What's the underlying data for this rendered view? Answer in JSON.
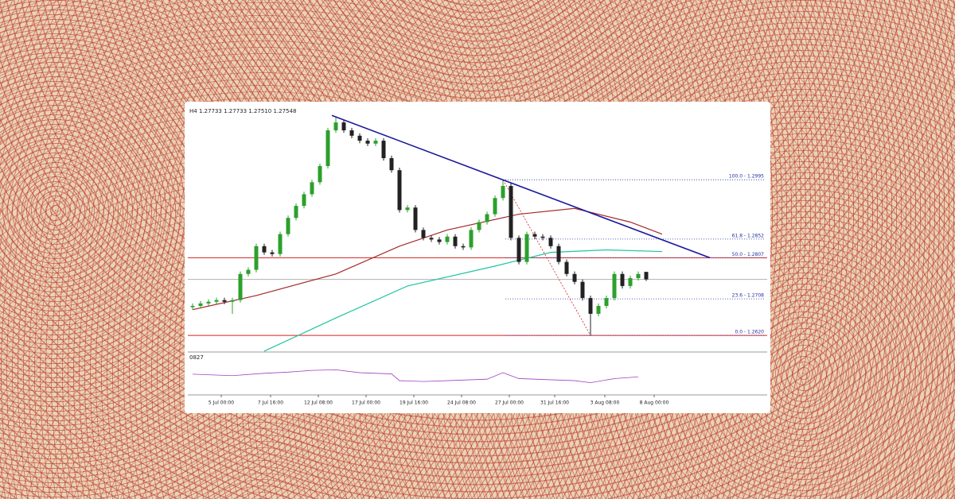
{
  "chart_data": {
    "type": "candlestick",
    "title": "H4 1.27733 1.27733 1.27510 1.27548",
    "up_color": "#2ca02c",
    "down_color": "#222222",
    "open": [
      1.2688,
      1.2691,
      1.2697,
      1.2701,
      1.2705,
      1.2701,
      1.2705,
      1.2768,
      1.2778,
      1.2835,
      1.282,
      1.2816,
      1.2864,
      1.2903,
      1.2932,
      1.296,
      1.2989,
      1.3028,
      1.3114,
      1.3133,
      1.3114,
      1.3101,
      1.3089,
      1.3082,
      1.3089,
      1.3047,
      1.3018,
      1.2922,
      1.2928,
      1.2874,
      1.2855,
      1.2851,
      1.2845,
      1.2858,
      1.2835,
      1.2832,
      1.2874,
      1.2893,
      1.2912,
      1.2951,
      1.298,
      1.2855,
      1.2797,
      1.2864,
      1.2858,
      1.2855,
      1.2835,
      1.2797,
      1.2768,
      1.2749,
      1.271,
      1.2672,
      1.2691,
      1.271,
      1.2768,
      1.2739,
      1.2758,
      1.2773
    ],
    "high": [
      1.2697,
      1.2703,
      1.2707,
      1.2711,
      1.2711,
      1.2711,
      1.2774,
      1.2784,
      1.2841,
      1.2841,
      1.2826,
      1.287,
      1.2909,
      1.2938,
      1.2966,
      1.2995,
      1.3034,
      1.312,
      1.3147,
      1.3139,
      1.312,
      1.3107,
      1.3095,
      1.3095,
      1.3095,
      1.3053,
      1.3024,
      1.2934,
      1.2934,
      1.288,
      1.2861,
      1.2857,
      1.2864,
      1.2864,
      1.2841,
      1.288,
      1.2899,
      1.2918,
      1.2957,
      1.2995,
      1.2986,
      1.2861,
      1.287,
      1.287,
      1.2864,
      1.2861,
      1.2841,
      1.2803,
      1.2774,
      1.2755,
      1.2716,
      1.2697,
      1.2716,
      1.2774,
      1.2774,
      1.2764,
      1.2774,
      1.2773
    ],
    "low": [
      1.2682,
      1.2685,
      1.2691,
      1.2695,
      1.2695,
      1.2672,
      1.2699,
      1.2762,
      1.2772,
      1.2814,
      1.281,
      1.281,
      1.2858,
      1.2897,
      1.2926,
      1.2954,
      1.2983,
      1.3022,
      1.3108,
      1.3108,
      1.3095,
      1.3083,
      1.3076,
      1.3076,
      1.3041,
      1.3012,
      1.2916,
      1.2916,
      1.2868,
      1.2849,
      1.2845,
      1.2839,
      1.2839,
      1.2829,
      1.2826,
      1.2826,
      1.2868,
      1.2887,
      1.2906,
      1.2945,
      1.2849,
      1.2791,
      1.2791,
      1.2852,
      1.2849,
      1.2829,
      1.2791,
      1.2762,
      1.2743,
      1.2704,
      1.262,
      1.2666,
      1.2685,
      1.2704,
      1.2733,
      1.2733,
      1.2752,
      1.2751
    ],
    "close": [
      1.2691,
      1.2697,
      1.2701,
      1.2705,
      1.2701,
      1.2705,
      1.2768,
      1.2778,
      1.2835,
      1.282,
      1.2816,
      1.2864,
      1.2903,
      1.2932,
      1.296,
      1.2989,
      1.3028,
      1.3114,
      1.3133,
      1.3114,
      1.3101,
      1.3089,
      1.3082,
      1.3089,
      1.3047,
      1.3018,
      1.2922,
      1.2928,
      1.2874,
      1.2855,
      1.2851,
      1.2845,
      1.2858,
      1.2835,
      1.2832,
      1.2874,
      1.2893,
      1.2912,
      1.2951,
      1.298,
      1.2855,
      1.2797,
      1.2864,
      1.2858,
      1.2855,
      1.2835,
      1.2797,
      1.2768,
      1.2749,
      1.271,
      1.2672,
      1.2691,
      1.271,
      1.2768,
      1.2739,
      1.2758,
      1.2768,
      1.2755
    ],
    "xlim": [
      -0.2,
      72.6
    ],
    "ylim": [
      1.258,
      1.316
    ],
    "xticks": [
      {
        "value": 3.6,
        "label": "5 Jul 00:00"
      },
      {
        "value": 9.8,
        "label": "7 Jul 16:00"
      },
      {
        "value": 15.8,
        "label": "12 Jul 08:00"
      },
      {
        "value": 21.8,
        "label": "17 Jul 00:00"
      },
      {
        "value": 27.8,
        "label": "19 Jul 16:00"
      },
      {
        "value": 33.8,
        "label": "24 Jul 08:00"
      },
      {
        "value": 39.8,
        "label": "27 Jul 00:00"
      },
      {
        "value": 45.5,
        "label": "31 Jul 16:00"
      },
      {
        "value": 51.8,
        "label": "3 Aug 08:00"
      },
      {
        "value": 58,
        "label": "8 Aug 00:00"
      }
    ],
    "moving_averages": [
      {
        "color": "#a52a2a",
        "x": [
          0,
          8,
          18,
          26,
          32,
          41,
          48,
          55,
          59
        ],
        "values": [
          1.2682,
          1.2716,
          1.2768,
          1.2835,
          1.2874,
          1.2912,
          1.2926,
          1.2893,
          1.2864
        ]
      },
      {
        "color": "#20c4a0",
        "x": [
          9,
          18,
          27,
          38,
          45,
          52,
          59
        ],
        "values": [
          1.2582,
          1.2662,
          1.2739,
          1.2787,
          1.282,
          1.2826,
          1.2822
        ]
      }
    ],
    "trendline": {
      "color": "#1a1a9c",
      "x": [
        17.5,
        65
      ],
      "values": [
        1.315,
        1.2807
      ]
    },
    "hlines": [
      {
        "value": 1.2807,
        "color": "#d62020"
      },
      {
        "value": 1.262,
        "color": "#d62020"
      },
      {
        "value": 1.27548,
        "color": "#b0b0b0"
      }
    ],
    "fib": {
      "color": "#2030a0",
      "x_start": 39.3,
      "diagonal": {
        "color": "#d62020",
        "x": [
          39,
          50
        ],
        "values": [
          1.2995,
          1.262
        ]
      },
      "levels": [
        {
          "value": 1.2995,
          "label": "100.0 - 1.2995"
        },
        {
          "value": 1.2852,
          "label": "61.8 - 1.2852"
        },
        {
          "value": 1.2807,
          "label": "50.0 - 1.2807"
        },
        {
          "value": 1.2708,
          "label": "23.6 - 1.2708"
        },
        {
          "value": 1.262,
          "label": "0.0 - 1.2620"
        }
      ]
    },
    "oscillator": {
      "title": "0827",
      "color": "#a040c0",
      "ylim": [
        0,
        100
      ],
      "x": [
        0,
        5,
        9,
        12,
        15,
        18,
        21,
        25,
        26,
        29,
        33,
        37,
        39,
        41,
        45,
        48,
        50,
        53,
        56
      ],
      "values": [
        57,
        52,
        60,
        64,
        70,
        72,
        62,
        58,
        35,
        32,
        36,
        40,
        62,
        42,
        38,
        35,
        28,
        42,
        48
      ]
    }
  }
}
